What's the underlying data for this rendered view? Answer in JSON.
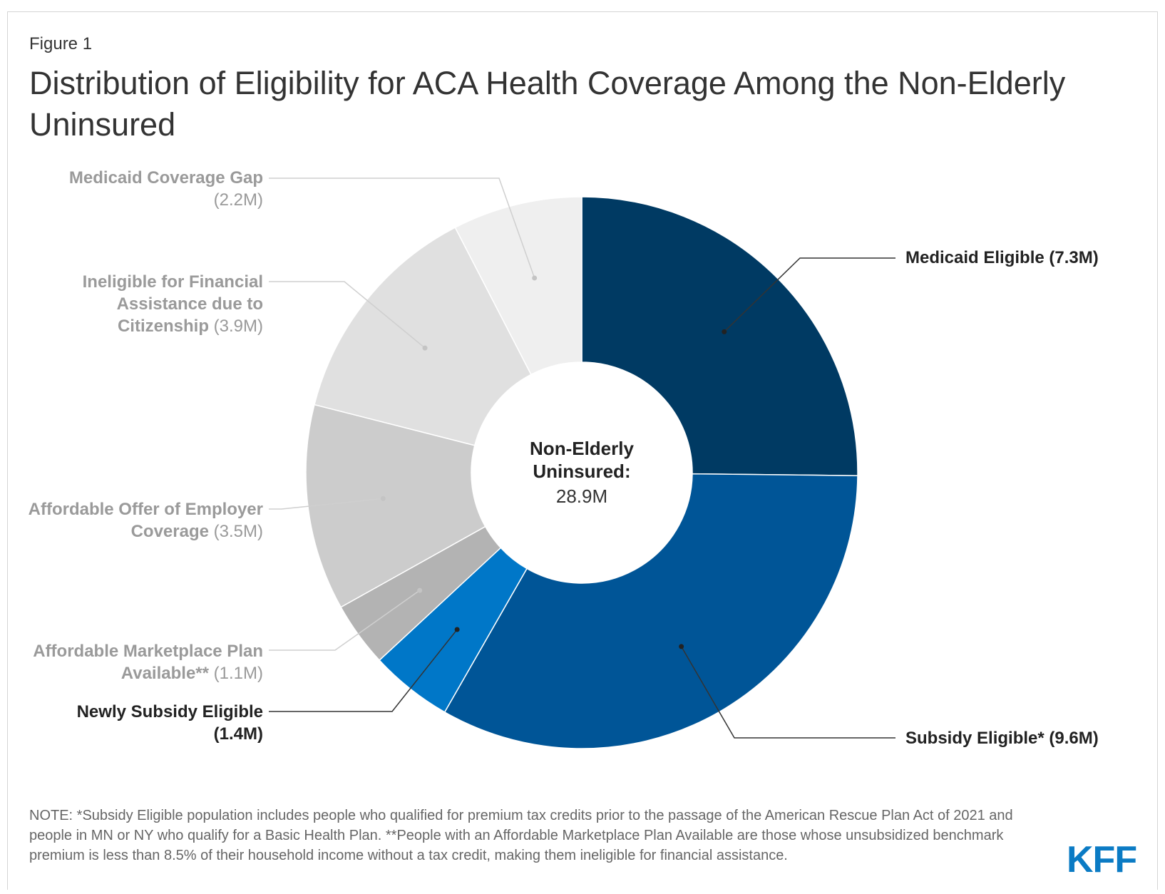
{
  "figure_label": "Figure 1",
  "title": "Distribution of Eligibility for ACA Health Coverage Among the Non-Elderly Uninsured",
  "center": {
    "title_line1": "Non-Elderly",
    "title_line2": "Uninsured:",
    "value": "28.9M"
  },
  "note": "NOTE: *Subsidy Eligible population includes people who qualified for premium tax credits prior to the passage of the American Rescue Plan Act of 2021 and people in MN or NY who qualify for a Basic Health Plan. **People with an Affordable Marketplace Plan Available are those whose unsubsidized benchmark premium is less than 8.5% of their household income without a tax credit, making them ineligible for financial assistance.",
  "logo": "KFF",
  "chart_data": {
    "type": "pie",
    "donut": true,
    "total": 28.9,
    "unit": "M",
    "series": [
      {
        "name": "Medicaid Eligible",
        "label_bold": "Medicaid Eligible (7.3M)",
        "label_rest": "",
        "value": 7.3,
        "color": "#003a63"
      },
      {
        "name": "Subsidy Eligible*",
        "label_bold": "Subsidy Eligible* (9.6M)",
        "label_rest": "",
        "value": 9.6,
        "color": "#005597"
      },
      {
        "name": "Newly Subsidy Eligible",
        "label_bold": "Newly Subsidy Eligible (1.4M)",
        "label_rest": "",
        "value": 1.4,
        "color": "#0077c8"
      },
      {
        "name": "Affordable Marketplace Plan Available**",
        "label_bold": "Affordable Marketplace Plan Available**",
        "label_rest": " (1.1M)",
        "value": 1.1,
        "color": "#b3b3b3"
      },
      {
        "name": "Affordable Offer of Employer Coverage",
        "label_bold": "Affordable Offer of Employer Coverage",
        "label_rest": " (3.5M)",
        "value": 3.5,
        "color": "#cccccc"
      },
      {
        "name": "Ineligible for Financial Assistance due to Citizenship",
        "label_bold": "Ineligible for Financial Assistance due to Citizenship",
        "label_rest": " (3.9M)",
        "value": 3.9,
        "color": "#e0e0e0"
      },
      {
        "name": "Medicaid Coverage Gap",
        "label_bold": "Medicaid Coverage Gap",
        "label_rest": " (2.2M)",
        "value": 2.2,
        "color": "#efefef"
      }
    ]
  }
}
